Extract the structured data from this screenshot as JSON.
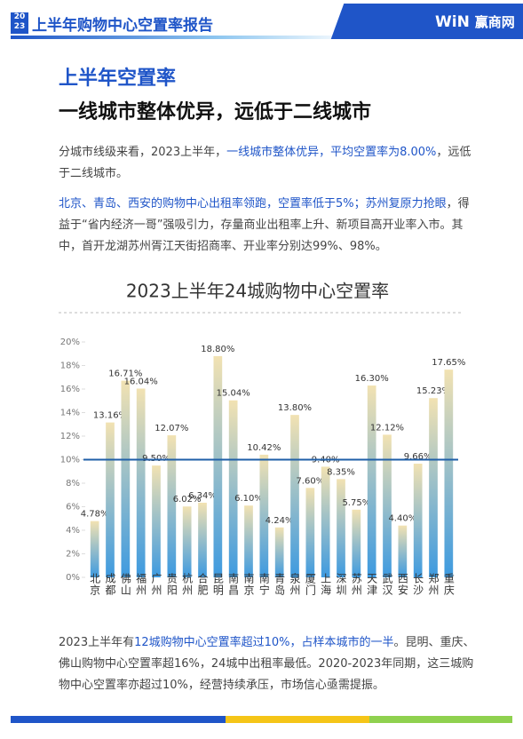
{
  "header": {
    "badge": [
      "20",
      "23"
    ],
    "title": "上半年购物中心空置率报告",
    "logo": "WiN",
    "brand": "赢商网"
  },
  "heading": {
    "title": "上半年空置率",
    "subtitle": "一线城市整体优异，远低于二线城市"
  },
  "paragraphs": [
    [
      {
        "text": "分城市线级来看，2023上半年，",
        "em": false
      },
      {
        "text": "一线城市整体优异，平均空置率为8.00%",
        "em": true
      },
      {
        "text": "，远低于二线城市。",
        "em": false
      }
    ],
    [
      {
        "text": "北京、青岛、西安的购物中心出租率领跑，空置率低于5%；苏州复原力抢眼",
        "em": true
      },
      {
        "text": "，得益于“省内经济一哥”强吸引力，存量商业出租率上升、新项目高开业率入市。其中，首开龙湖苏州胥江天街招商率、开业率分别达99%、98%。",
        "em": false
      }
    ]
  ],
  "closing": [
    {
      "text": "2023上半年有",
      "em": false
    },
    {
      "text": "12城购物中心空置率超过10%，占样本城市的一半",
      "em": true
    },
    {
      "text": "。昆明、重庆、佛山购物中心空置率超16%，24城中出租率最低。2020-2023年同期，这三城购物中心空置率亦超过10%，经营持续承压，市场信心亟需提振。",
      "em": false
    }
  ],
  "chart_data": {
    "type": "bar",
    "title": "2023上半年24城购物中心空置率",
    "categories": [
      "北京",
      "成都",
      "佛山",
      "福州",
      "广州",
      "贵阳",
      "杭州",
      "合肥",
      "昆明",
      "南昌",
      "南京",
      "南宁",
      "青岛",
      "泉州",
      "厦门",
      "上海",
      "深圳",
      "苏州",
      "天津",
      "武汉",
      "西安",
      "长沙",
      "郑州",
      "重庆"
    ],
    "values": [
      4.78,
      13.16,
      16.71,
      16.04,
      9.5,
      12.07,
      6.02,
      6.34,
      18.8,
      15.04,
      6.1,
      10.42,
      4.24,
      13.8,
      7.6,
      9.4,
      8.35,
      5.75,
      16.3,
      12.12,
      4.4,
      9.66,
      15.23,
      17.65
    ],
    "value_labels": [
      "4.78%",
      "13.16%",
      "16.71%",
      "16.04%",
      "9.50%",
      "12.07%",
      "6.02%",
      "6.34%",
      "18.80%",
      "15.04%",
      "6.10%",
      "10.42%",
      "4.24%",
      "13.80%",
      "7.60%",
      "9.40%",
      "8.35%",
      "5.75%",
      "16.30%",
      "12.12%",
      "4.40%",
      "9.66%",
      "15.23%",
      "17.65%"
    ],
    "ylim": [
      0,
      20
    ],
    "yticks": [
      {
        "value": 0,
        "label": "0%"
      },
      {
        "value": 2,
        "label": "2%"
      },
      {
        "value": 4,
        "label": "4%"
      },
      {
        "value": 6,
        "label": "6%"
      },
      {
        "value": 8,
        "label": "8%"
      },
      {
        "value": 10,
        "label": "10%"
      },
      {
        "value": 12,
        "label": "12%"
      },
      {
        "value": 14,
        "label": "14%"
      },
      {
        "value": 16,
        "label": "16%"
      },
      {
        "value": 18,
        "label": "18%"
      },
      {
        "value": 20,
        "label": "20%"
      }
    ],
    "reference_line": 10,
    "colors": [
      "#f2e2b2",
      "#3d9ae0"
    ],
    "reference_color": "#1f5fa8"
  }
}
